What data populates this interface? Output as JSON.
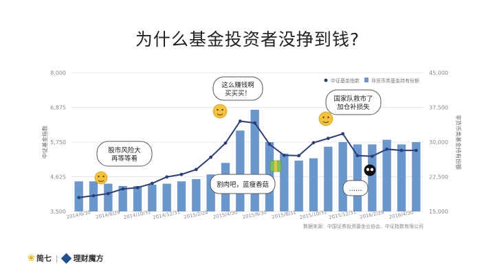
{
  "title": "为什么基金投资者没挣到钱?",
  "source": "数据来源：中国证券投资基金业协会、中证指数有限公司",
  "brand": {
    "logo1": "简七",
    "logo2": "理财魔方"
  },
  "chart_data": {
    "type": "bar+line",
    "categories": [
      "2014/6/30",
      "2014/7/31",
      "2014/8/29",
      "2014/9/30",
      "2014/10/31",
      "2014/11/28",
      "2014/12/31",
      "2015/1/30",
      "2015/2/28",
      "2015/3/31",
      "2015/4/30",
      "2015/5/29",
      "2015/6/30",
      "2015/7/31",
      "2015/8/31",
      "2015/9/30",
      "2015/10/31",
      "2015/11/30",
      "2015/12/31",
      "2016/1/29",
      "2016/2/29",
      "2016/3/31",
      "2016/4/30",
      "2016/5/31"
    ],
    "x_tick_labels": [
      "2014/6/30",
      "2014/8/29",
      "2014/10/31",
      "2014/12/31",
      "2015/2/28",
      "2015/4/30",
      "2015/6/30",
      "2015/8/31",
      "2015/10/31",
      "2015/12/31",
      "2016/2/29",
      "2016/4/30"
    ],
    "series": [
      {
        "name": "中证基金指数",
        "type": "line",
        "axis": "left",
        "values": [
          3950,
          4010,
          4080,
          4230,
          4270,
          4410,
          4620,
          4700,
          4860,
          5260,
          5720,
          6430,
          6370,
          5680,
          5320,
          5310,
          5730,
          5870,
          6020,
          5310,
          5290,
          5520,
          5480,
          5480
        ]
      },
      {
        "name": "非货币类基金持有份额",
        "type": "bar",
        "axis": "right",
        "values": [
          21500,
          21500,
          21000,
          20500,
          20500,
          20800,
          21000,
          21500,
          22000,
          23000,
          25500,
          32500,
          37000,
          30000,
          27500,
          26000,
          26500,
          29000,
          30000,
          29500,
          29500,
          30500,
          29500,
          30000
        ]
      }
    ],
    "y_left": {
      "label": "中证基金指数",
      "ylim": [
        3500,
        8000
      ],
      "ticks": [
        "3,500",
        "4,625",
        "5,750",
        "6,875",
        "8,000"
      ]
    },
    "y_right": {
      "label": "非货币类基金持有份额",
      "ylim": [
        15000,
        45000
      ],
      "ticks": [
        "15,000",
        "22,500",
        "30,000",
        "37,500",
        "45,000"
      ]
    },
    "annotations": [
      {
        "text": [
          "股市风险大",
          "再等等看"
        ]
      },
      {
        "text": [
          "这么赚钱啊",
          "买买买！"
        ]
      },
      {
        "text": [
          "割肉吧，蓝瘦香菇"
        ]
      },
      {
        "text": [
          "国家队救市了",
          "加仓补损失"
        ]
      },
      {
        "text": [
          "……"
        ]
      }
    ],
    "colors": {
      "bar": "#6a97cd",
      "line": "#2c3e78",
      "grid": "#e4e4e4",
      "emoji": "#f3c23a"
    },
    "legend_position": "top-right",
    "grid": true
  }
}
